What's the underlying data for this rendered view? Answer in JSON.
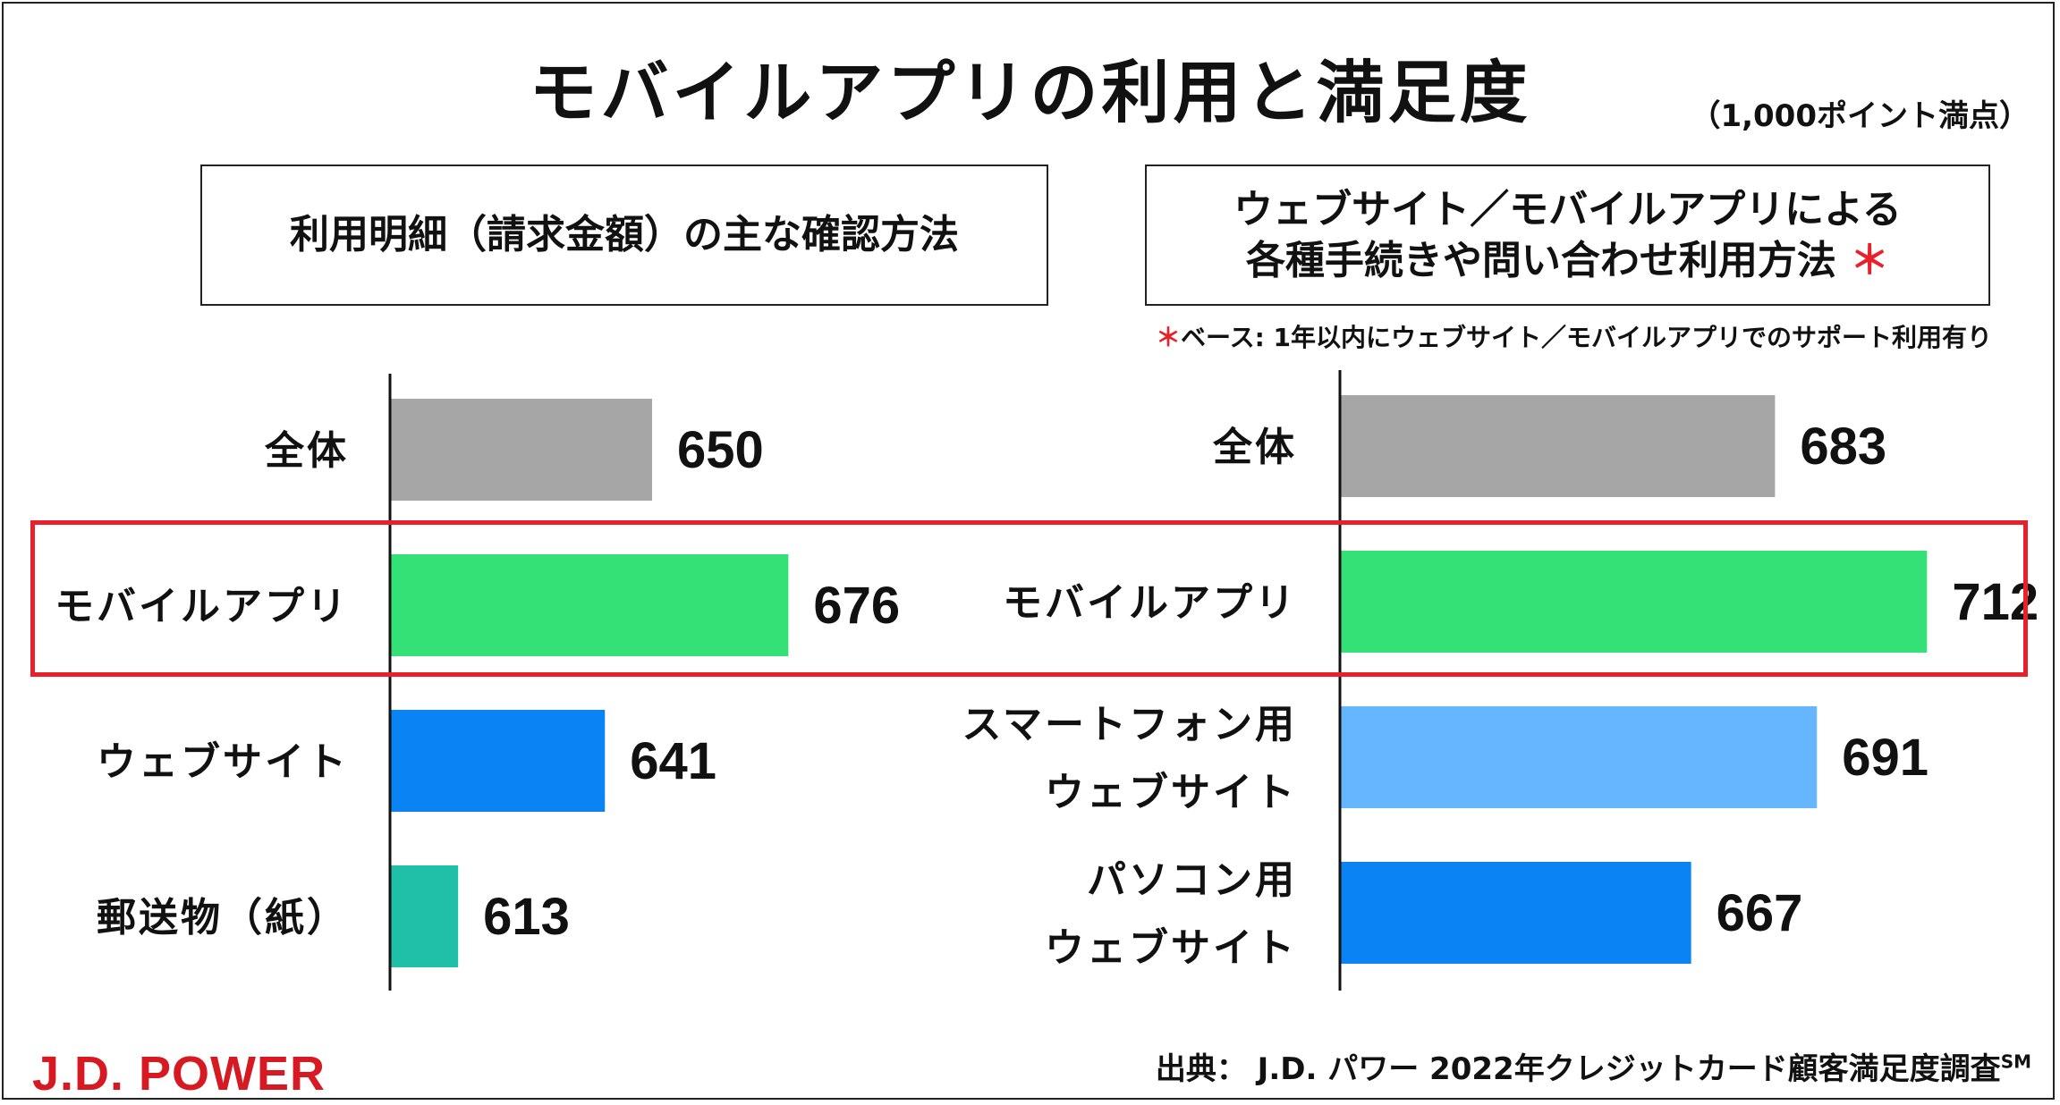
{
  "title": "モバイルアプリの利用と満足度",
  "unit": "（1,000ポイント満点）",
  "panels": {
    "left_heading": "利用明細（請求金額）の主な確認方法",
    "right_heading_line1": "ウェブサイト／モバイルアプリによる",
    "right_heading_line2": "各種手続きや問い合わせ利用方法",
    "right_heading_mark": "＊",
    "note_mark": "＊",
    "note": "ベース: 1年以内にウェブサイト／モバイルアプリでのサポート利用有り"
  },
  "colors": {
    "gray": "#a6a6a6",
    "green": "#33e176",
    "blue": "#0b84f3",
    "teal": "#20bfa8",
    "light_blue": "#66b6ff",
    "highlight": "#e8202a",
    "brand": "#d71921"
  },
  "chart_data": [
    {
      "type": "bar",
      "orientation": "horizontal",
      "title": "利用明細（請求金額）の主な確認方法",
      "categories": [
        [
          "全体"
        ],
        [
          "モバイルアプリ"
        ],
        [
          "ウェブサイト"
        ],
        [
          "郵送物（紙）"
        ]
      ],
      "values": [
        650,
        676,
        641,
        613
      ],
      "value_labels": [
        "650",
        "676",
        "641",
        "613"
      ],
      "bar_colors": [
        "#a6a6a6",
        "#33e176",
        "#0b84f3",
        "#20bfa8"
      ],
      "highlighted_category_index": 1
    },
    {
      "type": "bar",
      "orientation": "horizontal",
      "title": "ウェブサイト／モバイルアプリによる各種手続きや問い合わせ利用方法",
      "categories": [
        [
          "全体"
        ],
        [
          "モバイルアプリ"
        ],
        [
          "スマートフォン用",
          "ウェブサイト"
        ],
        [
          "パソコン用",
          "ウェブサイト"
        ]
      ],
      "values": [
        683,
        712,
        691,
        667
      ],
      "value_labels": [
        "683",
        "712",
        "691",
        "667"
      ],
      "bar_colors": [
        "#a6a6a6",
        "#33e176",
        "#66b6ff",
        "#0b84f3"
      ],
      "highlighted_category_index": 1
    }
  ],
  "footer": {
    "brand": "J.D. POWER",
    "source": "出典： J.D. パワー 2022年クレジットカード顧客満足度調査",
    "source_sup": "SM"
  }
}
